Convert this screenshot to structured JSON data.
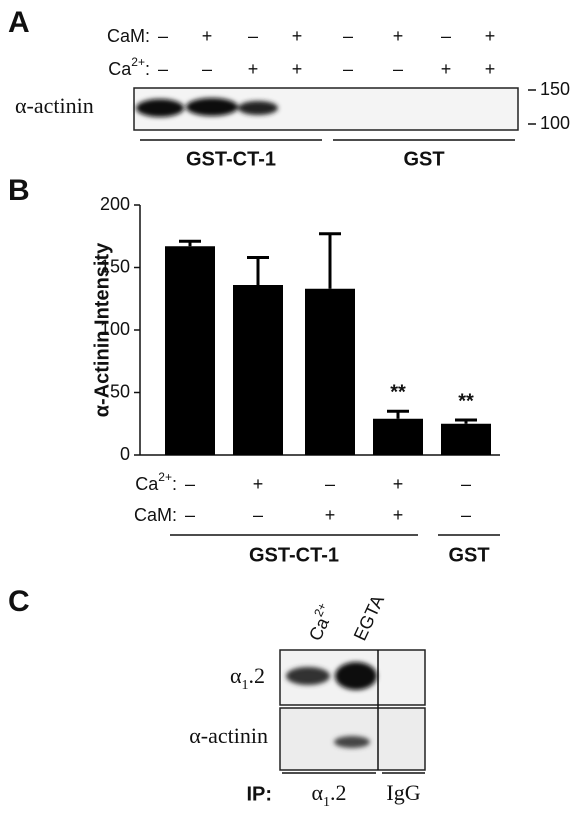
{
  "panel_a": {
    "label": "A",
    "rows": [
      {
        "label": "CaM:",
        "signs": [
          "–",
          "+",
          "–",
          "+",
          "–",
          "+",
          "–",
          "+"
        ]
      },
      {
        "label": {
          "base": "Ca",
          "sup": "2+",
          "tail": ":"
        },
        "signs": [
          "–",
          "–",
          "+",
          "+",
          "–",
          "–",
          "+",
          "+"
        ]
      }
    ],
    "band_label": "α-actinin",
    "markers": [
      "150",
      "100"
    ],
    "groups": [
      "GST-CT-1",
      "GST"
    ]
  },
  "chart_data": {
    "type": "bar",
    "label": "B",
    "ylabel": "α-Actinin Intensity",
    "values": [
      167,
      136,
      133,
      29,
      25
    ],
    "errors": [
      4,
      22,
      44,
      6,
      3
    ],
    "annotations": [
      null,
      null,
      null,
      "**",
      "**"
    ],
    "color": "#000000",
    "ylim": [
      0,
      200
    ],
    "yticks": [
      0,
      50,
      100,
      150,
      200
    ],
    "conditions": [
      {
        "label": {
          "base": "Ca",
          "sup": "2+",
          "tail": ":"
        },
        "signs": [
          "–",
          "+",
          "–",
          "+",
          "–"
        ]
      },
      {
        "label": "CaM:",
        "signs": [
          "–",
          "–",
          "+",
          "+",
          "–"
        ]
      }
    ],
    "groups": [
      "GST-CT-1",
      "GST"
    ]
  },
  "panel_c": {
    "label": "C",
    "lanes": [
      {
        "base": "Ca",
        "sup": "2+"
      },
      "EGTA"
    ],
    "rows": [
      {
        "base": "α",
        "sub": "1",
        "tail": ".2"
      },
      "α-actinin"
    ],
    "ip_label": "IP:",
    "ip_groups": [
      {
        "base": "α",
        "sub": "1",
        "tail": ".2"
      },
      "IgG"
    ]
  }
}
